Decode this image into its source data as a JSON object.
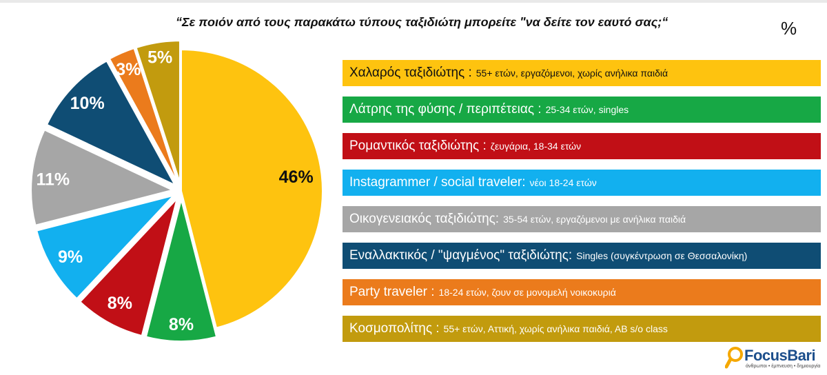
{
  "header": {
    "title": "“Σε ποιόν από τους παρακάτω τύπους ταξιδιώτη μπορείτε \"να δείτε τον εαυτό σας;“",
    "unit": "%"
  },
  "chart_data": {
    "type": "pie",
    "title": "“Σε ποιόν από τους παρακάτω τύπους ταξιδιώτη μπορείτε \"να δείτε τον εαυτό σας;“",
    "unit": "%",
    "legend_position": "right",
    "slices": [
      {
        "label": "Χαλαρός ταξιδιώτης :",
        "description": "55+ ετών, εργαζόμενοι, χωρίς ανήλικα παιδιά",
        "value": 46,
        "value_label": "46%",
        "color": "#FEC30F",
        "label_color": "#111111"
      },
      {
        "label": "Λάτρης της φύσης / περιπέτειας :",
        "description": "25-34 ετών, singles",
        "value": 8,
        "value_label": "8%",
        "color": "#17A845",
        "label_color": "#ffffff"
      },
      {
        "label": "Ρομαντικός ταξιδιώτης :",
        "description": "ζευγάρια, 18-34 ετών",
        "value": 8,
        "value_label": "8%",
        "color": "#C10F16",
        "label_color": "#ffffff"
      },
      {
        "label": "Instagrammer / social traveler:",
        "description": "νέοι 18-24 ετών",
        "value": 9,
        "value_label": "9%",
        "color": "#12B0EF",
        "label_color": "#ffffff"
      },
      {
        "label": "Οικογενειακός ταξιδιώτης:",
        "description": "35-54 ετών, εργαζόμενοι με ανήλικα παιδιά",
        "value": 11,
        "value_label": "11%",
        "color": "#A6A6A6",
        "label_color": "#ffffff"
      },
      {
        "label": "Εναλλακτικός / \"ψαγμένος\" ταξιδιώτης:",
        "description": "Singles (συγκέντρωση σε Θεσσαλονίκη)",
        "value": 10,
        "value_label": "10%",
        "color": "#0F4D74",
        "label_color": "#ffffff"
      },
      {
        "label": "Party traveler :",
        "description": "18-24 ετών, ζουν σε μονομελή νοικοκυριά",
        "value": 3,
        "value_label": "3%",
        "color": "#EB7B1C",
        "label_color": "#ffffff"
      },
      {
        "label": "Κοσμοπολίτης :",
        "description": "55+ ετών, Αττική, χωρίς ανήλικα παιδιά, ΑΒ s/o class",
        "value": 5,
        "value_label": "5%",
        "color": "#C29B0E",
        "label_color": "#ffffff"
      }
    ]
  },
  "logo": {
    "name": "FocusBari",
    "tagline": "άνθρωποι • έμπνευση • δημιουργία"
  }
}
